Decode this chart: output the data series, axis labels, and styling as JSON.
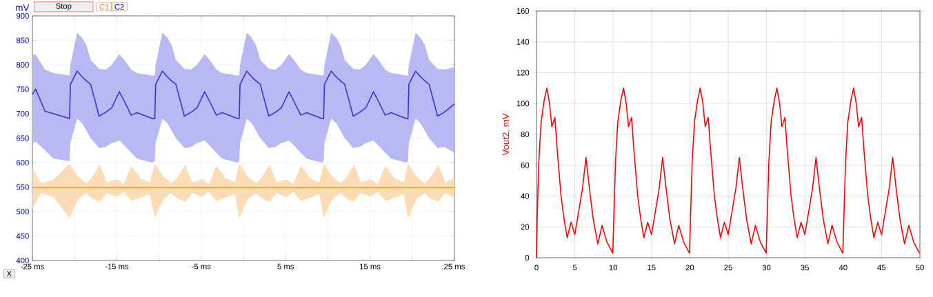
{
  "chart_data": [
    {
      "type": "line",
      "ylabel": "mV",
      "xlim": [
        -25,
        25
      ],
      "ylim": [
        400,
        900
      ],
      "xticks": [
        {
          "value": -25,
          "label": "-25 ms"
        },
        {
          "value": -20,
          "label": null
        },
        {
          "value": -15,
          "label": "-15 ms"
        },
        {
          "value": -10,
          "label": null
        },
        {
          "value": -5,
          "label": "-5 ms"
        },
        {
          "value": 0,
          "label": null
        },
        {
          "value": 5,
          "label": "5 ms"
        },
        {
          "value": 10,
          "label": null
        },
        {
          "value": 15,
          "label": "15 ms"
        },
        {
          "value": 20,
          "label": null
        },
        {
          "value": 25,
          "label": "25 ms"
        }
      ],
      "yticks": [
        400,
        450,
        500,
        550,
        600,
        650,
        700,
        750,
        800,
        850,
        900
      ],
      "grid": true,
      "annotations": [
        "Stop",
        "C1",
        "C2",
        "X"
      ],
      "series": [
        {
          "color": "#3333dd",
          "x": [
            -25,
            -24.6,
            -23.5,
            -22.5,
            -20.6,
            -20.5,
            -19.7,
            -19.1,
            -18.6,
            -18.1,
            -17.1,
            -16.3,
            -15.6,
            -14.7,
            -14.1,
            -13.3,
            -12.6,
            -10.8,
            -10.5,
            -10.4,
            -9.6,
            -9.0,
            -8.5,
            -8.0,
            -7.0,
            -6.2,
            -5.5,
            -4.6,
            -4.0,
            -3.2,
            -2.5,
            -0.7,
            -0.5,
            -0.4,
            0.4,
            1.0,
            1.5,
            2.0,
            3.0,
            3.8,
            4.5,
            5.4,
            6.0,
            6.8,
            7.5,
            9.3,
            9.5,
            9.6,
            10.4,
            11.0,
            11.5,
            12.0,
            13.0,
            13.8,
            14.5,
            15.4,
            16.0,
            16.8,
            17.5,
            19.3,
            19.5,
            19.6,
            20.4,
            21.0,
            21.5,
            22.0,
            23.0,
            23.8,
            25
          ],
          "values": [
            740,
            750,
            705,
            700,
            690,
            760,
            787,
            775,
            767,
            760,
            695,
            703,
            712,
            745,
            725,
            697,
            702,
            690,
            690,
            760,
            787,
            775,
            767,
            760,
            695,
            703,
            712,
            745,
            725,
            697,
            702,
            690,
            690,
            760,
            787,
            775,
            767,
            760,
            695,
            703,
            712,
            745,
            725,
            697,
            702,
            690,
            690,
            760,
            787,
            775,
            767,
            760,
            695,
            703,
            712,
            745,
            725,
            697,
            702,
            690,
            690,
            760,
            787,
            775,
            767,
            760,
            695,
            703,
            720
          ],
          "upper": [
            822,
            820,
            790,
            783,
            778,
            800,
            866,
            855,
            840,
            810,
            792,
            790,
            800,
            822,
            810,
            790,
            783,
            778,
            778,
            800,
            866,
            855,
            840,
            810,
            792,
            790,
            800,
            822,
            810,
            790,
            783,
            778,
            778,
            800,
            866,
            855,
            840,
            810,
            792,
            790,
            800,
            822,
            810,
            790,
            783,
            778,
            778,
            800,
            866,
            855,
            840,
            810,
            792,
            790,
            800,
            822,
            810,
            790,
            783,
            778,
            778,
            800,
            866,
            855,
            840,
            810,
            792,
            790,
            795
          ],
          "lower": [
            640,
            643,
            625,
            608,
            603,
            640,
            690,
            680,
            665,
            650,
            630,
            632,
            640,
            645,
            635,
            620,
            608,
            600,
            603,
            640,
            690,
            680,
            665,
            650,
            630,
            632,
            640,
            645,
            635,
            620,
            608,
            600,
            603,
            640,
            690,
            680,
            665,
            650,
            630,
            632,
            640,
            645,
            635,
            620,
            608,
            600,
            603,
            640,
            690,
            680,
            665,
            650,
            630,
            632,
            640,
            645,
            635,
            620,
            608,
            600,
            603,
            640,
            690,
            680,
            665,
            650,
            630,
            632,
            620
          ]
        },
        {
          "color": "#f59a2a",
          "x": [
            -25,
            -24,
            -22.5,
            -20.6,
            -19.6,
            -18.6,
            -18.0,
            -17.0,
            -16.2,
            -15.0,
            -14.2,
            -13.3,
            -12.2,
            -11.1,
            -10.5,
            -9.5,
            -8.5,
            -7.9,
            -6.9,
            -6.1,
            -4.9,
            -4.1,
            -3.2,
            -2.1,
            -1.0,
            -0.5,
            0.5,
            1.5,
            2.1,
            3.1,
            3.9,
            5.1,
            5.9,
            6.8,
            7.9,
            9.0,
            9.5,
            10.5,
            11.5,
            12.1,
            13.1,
            13.9,
            15.1,
            15.9,
            16.8,
            17.9,
            19.0,
            19.5,
            20.5,
            21.5,
            22.1,
            23.1,
            23.9,
            25
          ],
          "values": [
            549,
            549,
            549,
            549,
            549,
            549,
            549,
            549,
            549,
            549,
            549,
            549,
            549,
            549,
            549,
            549,
            549,
            549,
            549,
            549,
            549,
            549,
            549,
            549,
            549,
            549,
            549,
            549,
            549,
            549,
            549,
            549,
            549,
            549,
            549,
            549,
            549,
            549,
            549,
            549,
            549,
            549,
            549,
            549,
            549,
            549,
            549,
            549,
            549,
            549,
            549,
            549,
            549,
            549
          ],
          "upper": [
            590,
            558,
            565,
            598,
            572,
            558,
            568,
            596,
            560,
            566,
            556,
            594,
            568,
            560,
            598,
            572,
            558,
            568,
            596,
            560,
            566,
            556,
            594,
            568,
            560,
            598,
            572,
            558,
            568,
            596,
            560,
            566,
            556,
            594,
            568,
            560,
            598,
            572,
            558,
            568,
            596,
            560,
            566,
            556,
            594,
            568,
            560,
            598,
            572,
            558,
            568,
            596,
            560,
            568
          ],
          "lower": [
            505,
            538,
            530,
            487,
            525,
            538,
            527,
            520,
            538,
            530,
            540,
            522,
            528,
            536,
            487,
            525,
            538,
            527,
            520,
            538,
            530,
            540,
            522,
            528,
            536,
            487,
            525,
            538,
            527,
            520,
            538,
            530,
            540,
            522,
            528,
            536,
            487,
            525,
            538,
            527,
            520,
            538,
            530,
            540,
            522,
            528,
            536,
            487,
            525,
            538,
            527,
            520,
            538,
            528
          ]
        }
      ]
    },
    {
      "type": "line",
      "ylabel": "Vout2, mV",
      "xlim": [
        0,
        50
      ],
      "ylim": [
        0,
        160
      ],
      "xticks": [
        0,
        5,
        10,
        15,
        20,
        25,
        30,
        35,
        40,
        45,
        50
      ],
      "yticks": [
        0,
        20,
        40,
        60,
        80,
        100,
        120,
        140,
        160
      ],
      "grid": true,
      "series": [
        {
          "color": "#ff0000",
          "x": [
            0,
            0.1,
            0.3,
            0.6,
            1,
            1.35,
            1.7,
            2,
            2.4,
            2.7,
            3.2,
            3.6,
            4,
            4.5,
            5,
            5.5,
            6,
            6.45,
            6.9,
            7.4,
            8,
            8.55,
            9.2,
            9.95,
            10.1,
            10.3,
            10.6,
            11,
            11.35,
            11.7,
            12,
            12.4,
            12.7,
            13.2,
            13.6,
            14,
            14.5,
            15,
            15.5,
            16,
            16.45,
            16.9,
            17.4,
            18,
            18.55,
            19.2,
            19.95,
            20.1,
            20.3,
            20.6,
            21,
            21.35,
            21.7,
            22,
            22.4,
            22.7,
            23.2,
            23.6,
            24,
            24.5,
            25,
            25.5,
            26,
            26.45,
            26.9,
            27.4,
            28,
            28.55,
            29.2,
            29.95,
            30.1,
            30.3,
            30.6,
            31,
            31.35,
            31.7,
            32,
            32.4,
            32.7,
            33.2,
            33.6,
            34,
            34.5,
            35,
            35.5,
            36,
            36.45,
            36.9,
            37.4,
            38,
            38.55,
            39.2,
            39.95,
            40.1,
            40.3,
            40.6,
            41,
            41.35,
            41.7,
            42,
            42.4,
            42.7,
            43.2,
            43.6,
            44,
            44.5,
            45,
            45.5,
            46,
            46.45,
            46.9,
            47.4,
            48,
            48.55,
            49.2,
            49.95
          ],
          "values": [
            0,
            28,
            62,
            88,
            102,
            110,
            100,
            85,
            91,
            70,
            40,
            25,
            13,
            23,
            15,
            30,
            45,
            65,
            45,
            25,
            9,
            21,
            10,
            3,
            28,
            62,
            88,
            102,
            110,
            100,
            85,
            91,
            70,
            40,
            25,
            13,
            23,
            15,
            30,
            45,
            65,
            45,
            25,
            9,
            21,
            10,
            3,
            28,
            62,
            88,
            102,
            110,
            100,
            85,
            91,
            70,
            40,
            25,
            13,
            23,
            15,
            30,
            45,
            65,
            45,
            25,
            9,
            21,
            10,
            3,
            28,
            62,
            88,
            102,
            110,
            100,
            85,
            91,
            70,
            40,
            25,
            13,
            23,
            15,
            30,
            45,
            65,
            45,
            25,
            9,
            21,
            10,
            3,
            28,
            62,
            88,
            102,
            110,
            100,
            85,
            91,
            70,
            40,
            25,
            13,
            23,
            15,
            30,
            45,
            65,
            45,
            25,
            9,
            21,
            10,
            3
          ]
        }
      ]
    }
  ]
}
